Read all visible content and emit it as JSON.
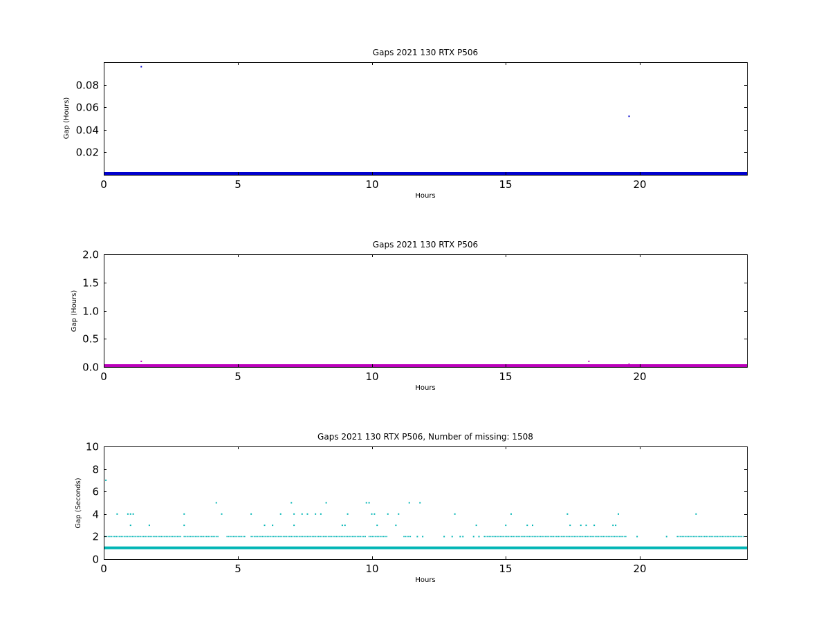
{
  "chart_data": [
    {
      "type": "scatter",
      "title": "Gaps 2021 130 RTX  P506",
      "xlabel": "Hours",
      "ylabel": "Gap (Hours)",
      "xlim": [
        0,
        24
      ],
      "ylim": [
        0,
        0.1
      ],
      "xticks": [
        0,
        5,
        10,
        15,
        20
      ],
      "xtick_labels": [
        "0",
        "5",
        "10",
        "15",
        "20"
      ],
      "yticks": [
        0.02,
        0.04,
        0.06,
        0.08
      ],
      "ytick_labels": [
        "0.02",
        "0.04",
        "0.06",
        "0.08"
      ],
      "grid": false,
      "color": "#0000cc",
      "baseline_band": {
        "x_start": 0,
        "x_end": 24,
        "y": 0.0003
      },
      "points": [
        {
          "x": 0.08,
          "y": 0.0015
        },
        {
          "x": 1.4,
          "y": 0.096
        },
        {
          "x": 4.2,
          "y": 0.001
        },
        {
          "x": 7.0,
          "y": 0.001
        },
        {
          "x": 8.2,
          "y": 0.001
        },
        {
          "x": 9.7,
          "y": 0.001
        },
        {
          "x": 11.4,
          "y": 0.001
        },
        {
          "x": 11.8,
          "y": 0.001
        },
        {
          "x": 19.6,
          "y": 0.052
        }
      ]
    },
    {
      "type": "scatter",
      "title": "Gaps 2021 130 RTX  P506",
      "xlabel": "Hours",
      "ylabel": "Gap (Hours)",
      "xlim": [
        0,
        24
      ],
      "ylim": [
        0,
        2.0
      ],
      "xticks": [
        0,
        5,
        10,
        15,
        20
      ],
      "xtick_labels": [
        "0",
        "5",
        "10",
        "15",
        "20"
      ],
      "yticks": [
        0.0,
        0.5,
        1.0,
        1.5,
        2.0
      ],
      "ytick_labels": [
        "0.0",
        "0.5",
        "1.0",
        "1.5",
        "2.0"
      ],
      "grid": false,
      "color": "#bb00bb",
      "baseline_band": {
        "x_start": 0,
        "x_end": 24,
        "y": 0.005
      },
      "points": [
        {
          "x": 1.4,
          "y": 0.1
        },
        {
          "x": 18.1,
          "y": 0.1
        },
        {
          "x": 19.6,
          "y": 0.05
        }
      ]
    },
    {
      "type": "scatter",
      "title": "Gaps 2021 130 RTX  P506, Number of missing: 1508",
      "xlabel": "Hours",
      "ylabel": "Gap (Seconds)",
      "xlim": [
        0,
        24
      ],
      "ylim": [
        0,
        10
      ],
      "xticks": [
        0,
        5,
        10,
        15,
        20
      ],
      "xtick_labels": [
        "0",
        "5",
        "10",
        "15",
        "20"
      ],
      "yticks": [
        0,
        2,
        4,
        6,
        8,
        10
      ],
      "ytick_labels": [
        "0",
        "2",
        "4",
        "6",
        "8",
        "10"
      ],
      "grid": false,
      "color": "#00b5b5",
      "baseline_band": {
        "x_start": 0,
        "x_end": 24,
        "y": 1
      },
      "dense_rows": [
        {
          "y": 2,
          "segments": [
            [
              0.05,
              2.9
            ],
            [
              3.0,
              4.3
            ],
            [
              4.6,
              5.3
            ],
            [
              5.5,
              9.8
            ],
            [
              9.9,
              10.6
            ],
            [
              11.2,
              11.5
            ],
            [
              14.2,
              19.5
            ],
            [
              21.4,
              23.9
            ]
          ]
        }
      ],
      "points": [
        {
          "x": 0.08,
          "y": 7
        },
        {
          "x": 0.5,
          "y": 4
        },
        {
          "x": 0.9,
          "y": 4
        },
        {
          "x": 1.0,
          "y": 4
        },
        {
          "x": 1.1,
          "y": 4
        },
        {
          "x": 1.0,
          "y": 3
        },
        {
          "x": 1.7,
          "y": 3
        },
        {
          "x": 3.0,
          "y": 4
        },
        {
          "x": 3.0,
          "y": 3
        },
        {
          "x": 4.2,
          "y": 5
        },
        {
          "x": 4.4,
          "y": 4
        },
        {
          "x": 5.5,
          "y": 4
        },
        {
          "x": 6.0,
          "y": 3
        },
        {
          "x": 6.3,
          "y": 3
        },
        {
          "x": 6.6,
          "y": 4
        },
        {
          "x": 7.0,
          "y": 5
        },
        {
          "x": 7.1,
          "y": 4
        },
        {
          "x": 7.1,
          "y": 3
        },
        {
          "x": 7.4,
          "y": 4
        },
        {
          "x": 7.6,
          "y": 4
        },
        {
          "x": 7.9,
          "y": 4
        },
        {
          "x": 8.1,
          "y": 4
        },
        {
          "x": 8.3,
          "y": 5
        },
        {
          "x": 8.9,
          "y": 3
        },
        {
          "x": 9.0,
          "y": 3
        },
        {
          "x": 9.1,
          "y": 4
        },
        {
          "x": 9.8,
          "y": 5
        },
        {
          "x": 9.9,
          "y": 5
        },
        {
          "x": 10.0,
          "y": 4
        },
        {
          "x": 10.1,
          "y": 4
        },
        {
          "x": 10.2,
          "y": 3
        },
        {
          "x": 10.6,
          "y": 4
        },
        {
          "x": 10.9,
          "y": 3
        },
        {
          "x": 11.0,
          "y": 4
        },
        {
          "x": 11.4,
          "y": 5
        },
        {
          "x": 11.8,
          "y": 5
        },
        {
          "x": 11.7,
          "y": 2
        },
        {
          "x": 11.9,
          "y": 2
        },
        {
          "x": 12.7,
          "y": 2
        },
        {
          "x": 13.0,
          "y": 2
        },
        {
          "x": 13.1,
          "y": 4
        },
        {
          "x": 13.3,
          "y": 2
        },
        {
          "x": 13.4,
          "y": 2
        },
        {
          "x": 13.8,
          "y": 2
        },
        {
          "x": 13.9,
          "y": 3
        },
        {
          "x": 14.0,
          "y": 2
        },
        {
          "x": 15.0,
          "y": 3
        },
        {
          "x": 15.2,
          "y": 4
        },
        {
          "x": 15.8,
          "y": 3
        },
        {
          "x": 16.0,
          "y": 3
        },
        {
          "x": 17.3,
          "y": 4
        },
        {
          "x": 17.4,
          "y": 3
        },
        {
          "x": 17.8,
          "y": 3
        },
        {
          "x": 18.0,
          "y": 3
        },
        {
          "x": 18.3,
          "y": 3
        },
        {
          "x": 19.0,
          "y": 3
        },
        {
          "x": 19.1,
          "y": 3
        },
        {
          "x": 19.2,
          "y": 4
        },
        {
          "x": 19.9,
          "y": 2
        },
        {
          "x": 21.0,
          "y": 2
        },
        {
          "x": 22.1,
          "y": 4
        }
      ]
    }
  ]
}
